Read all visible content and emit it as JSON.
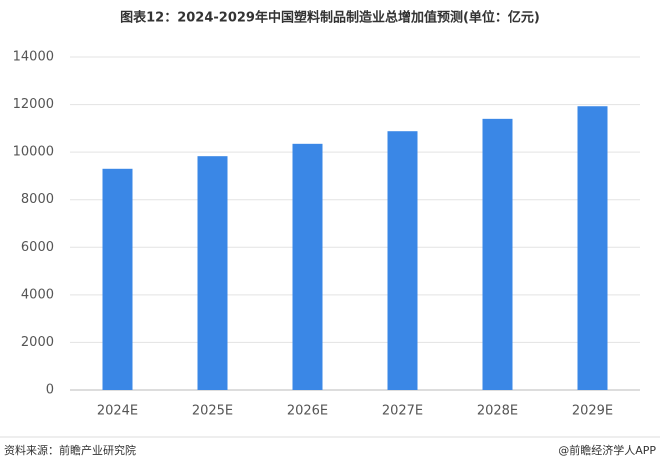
{
  "chart_data": {
    "type": "bar",
    "title": "图表12：2024-2029年中国塑料制品制造业总增加值预测(单位：亿元)",
    "categories": [
      "2024E",
      "2025E",
      "2026E",
      "2027E",
      "2028E",
      "2029E"
    ],
    "values": [
      9300,
      9830,
      10350,
      10880,
      11400,
      11930
    ],
    "color": "#3a87e6",
    "ylim": [
      0,
      14000
    ],
    "yticks": [
      0,
      2000,
      4000,
      6000,
      8000,
      10000,
      12000,
      14000
    ],
    "grid": true
  },
  "footer": {
    "source": "资料来源：前瞻产业研究院",
    "brand": "@前瞻经济学人APP"
  }
}
